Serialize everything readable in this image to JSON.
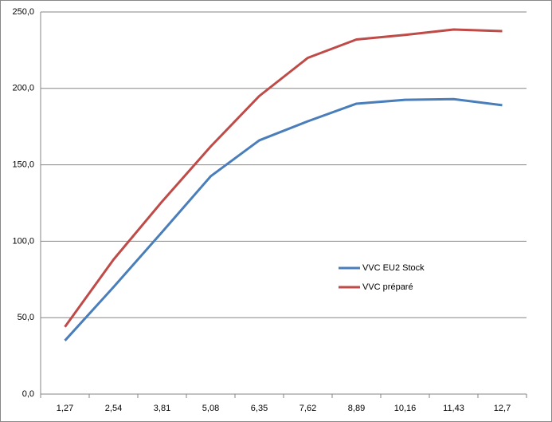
{
  "chart_data": {
    "type": "line",
    "categories": [
      "1,27",
      "2,54",
      "3,81",
      "5,08",
      "6,35",
      "7,62",
      "8,89",
      "10,16",
      "11,43",
      "12,7"
    ],
    "series": [
      {
        "name": "VVC EU2 Stock",
        "color": "#4a7ebb",
        "values": [
          35,
          70,
          106,
          142.5,
          166,
          178.5,
          190,
          192.5,
          193,
          189
        ]
      },
      {
        "name": "VVC préparé",
        "color": "#be4b48",
        "values": [
          44,
          88,
          126,
          162,
          195,
          220,
          232,
          235,
          238.5,
          237.5
        ]
      }
    ],
    "ylim": [
      0,
      250
    ],
    "yticks": [
      {
        "value": 0,
        "label": "0,0"
      },
      {
        "value": 50,
        "label": "50,0"
      },
      {
        "value": 100,
        "label": "100,0"
      },
      {
        "value": 150,
        "label": "150,0"
      },
      {
        "value": 200,
        "label": "200,0"
      },
      {
        "value": 250,
        "label": "250,0"
      }
    ],
    "grid": true,
    "legend": "right"
  }
}
